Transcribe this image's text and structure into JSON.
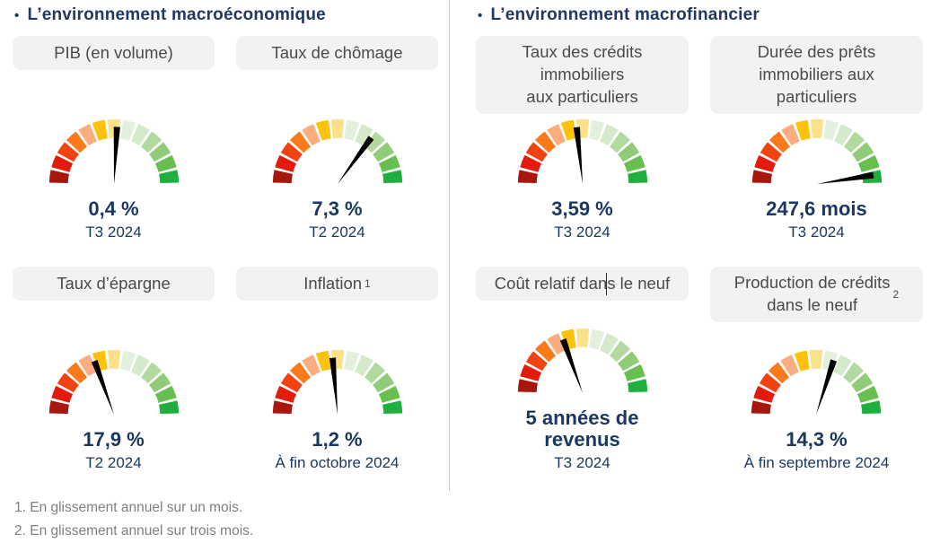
{
  "colors": {
    "title_navy": "#1f3864",
    "value_navy": "#1b3862",
    "pill_bg": "#f2f2f2",
    "pill_text": "#4a4a4a",
    "footnote_gray": "#7f7f7f",
    "divider_gray": "#c9c9c9",
    "needle_black": "#000000"
  },
  "gauge_palette": [
    "#a8170e",
    "#e31a0c",
    "#f04311",
    "#f9791b",
    "#fbad80",
    "#ffc20c",
    "#fbe18a",
    "#e3f0dd",
    "#d4eacb",
    "#b2da9f",
    "#90cc77",
    "#66bf4f",
    "#1faf3e"
  ],
  "sections": [
    {
      "title": "L’environnement macroéconomique",
      "bullet": "•",
      "cards": [
        {
          "label": "PIB (en volume)",
          "value": "0,4 %",
          "period": "T3 2024",
          "needle_deg": 3
        },
        {
          "label": "Taux de chômage",
          "value": "7,3 %",
          "period": "T2 2024",
          "needle_deg": 36
        },
        {
          "label": "Taux d’épargne",
          "value": "17,9 %",
          "period": "T2 2024",
          "needle_deg": -20
        },
        {
          "label": "Inflation",
          "label_sup": "1",
          "value": "1,2 %",
          "period": "À fin octobre 2024",
          "needle_deg": -5
        }
      ]
    },
    {
      "title": "L’environnement macrofinancier",
      "bullet": "•",
      "cards": [
        {
          "label": "Taux des crédits\nimmobiliers\naux particuliers",
          "value": "3,59 %",
          "period": "T3 2024",
          "needle_deg": -6
        },
        {
          "label": "Durée des prêts\nimmobiliers aux\nparticuliers",
          "value": "247,6 mois",
          "period": "T3 2024",
          "needle_deg": 81
        },
        {
          "label": "Coût relatif dans le neuf",
          "value": "5 années de revenus",
          "period": "T3 2024",
          "needle_deg": -20,
          "text_cursor": true
        },
        {
          "label": "Production de crédits\ndans le neuf",
          "label_sup": "2",
          "value": "14,3 %",
          "period": "À fin septembre 2024",
          "needle_deg": 18
        }
      ]
    }
  ],
  "footnotes": [
    "1. En glissement annuel sur un mois.",
    "2. En glissement annuel sur trois mois."
  ],
  "chart_data": [
    {
      "type": "gauge",
      "title": "PIB (en volume)",
      "value_label": "0,4 %",
      "period": "T3 2024",
      "needle_fraction": 0.52,
      "scale": "semi-circular, 13 segments red (left) to green (right)"
    },
    {
      "type": "gauge",
      "title": "Taux de chômage",
      "value_label": "7,3 %",
      "period": "T2 2024",
      "needle_fraction": 0.7,
      "scale": "semi-circular, 13 segments red (left) to green (right)"
    },
    {
      "type": "gauge",
      "title": "Taux d’épargne",
      "value_label": "17,9 %",
      "period": "T2 2024",
      "needle_fraction": 0.39,
      "scale": "semi-circular, 13 segments red (left) to green (right)"
    },
    {
      "type": "gauge",
      "title": "Inflation (1)",
      "value_label": "1,2 %",
      "period": "À fin octobre 2024",
      "needle_fraction": 0.47,
      "scale": "semi-circular, 13 segments red (left) to green (right)"
    },
    {
      "type": "gauge",
      "title": "Taux des crédits immobiliers aux particuliers",
      "value_label": "3,59 %",
      "period": "T3 2024",
      "needle_fraction": 0.47,
      "scale": "semi-circular, 13 segments red (left) to green (right)"
    },
    {
      "type": "gauge",
      "title": "Durée des prêts immobiliers aux particuliers",
      "value_label": "247,6 mois",
      "period": "T3 2024",
      "needle_fraction": 0.95,
      "scale": "semi-circular, 13 segments red (left) to green (right)"
    },
    {
      "type": "gauge",
      "title": "Coût relatif dans le neuf",
      "value_label": "5 années de revenus",
      "period": "T3 2024",
      "needle_fraction": 0.39,
      "scale": "semi-circular, 13 segments red (left) to green (right)"
    },
    {
      "type": "gauge",
      "title": "Production de crédits dans le neuf (2)",
      "value_label": "14,3 %",
      "period": "À fin septembre 2024",
      "needle_fraction": 0.6,
      "scale": "semi-circular, 13 segments red (left) to green (right)"
    }
  ]
}
